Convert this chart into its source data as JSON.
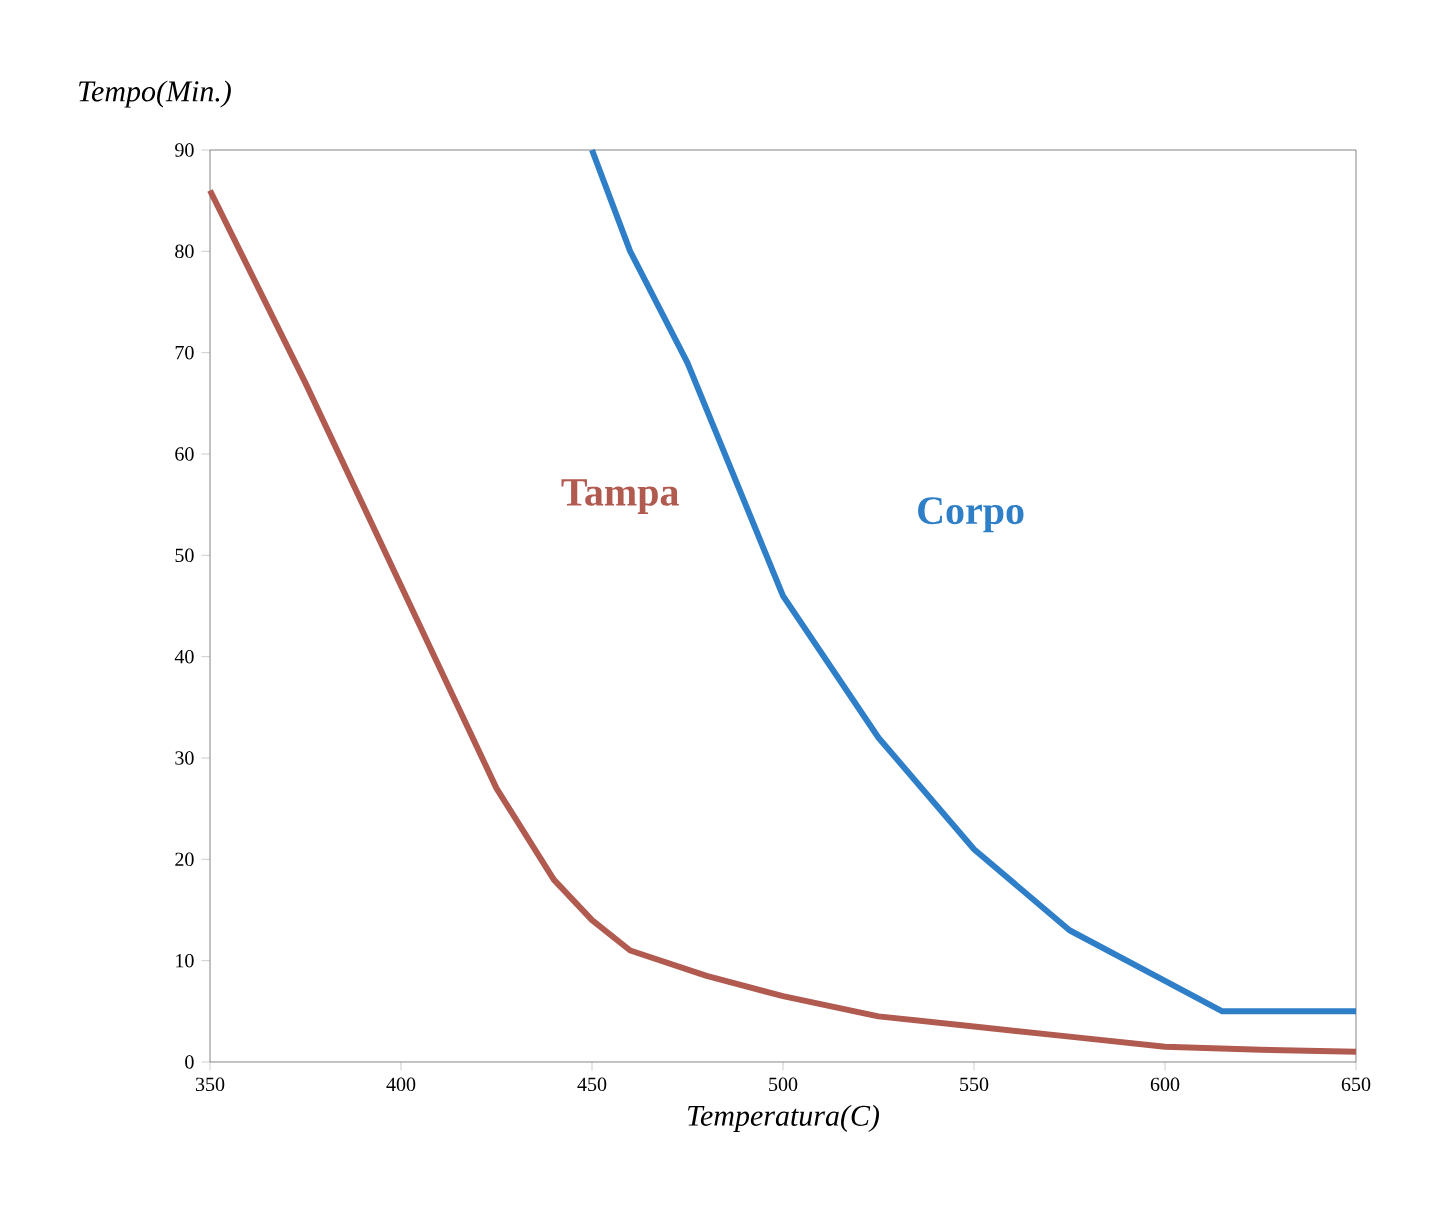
{
  "chart_data": {
    "type": "line",
    "xlabel": "Temperatura(C)",
    "ylabel": "Tempo(Min.)",
    "xlim": [
      350,
      650
    ],
    "xticks": [
      350,
      400,
      450,
      500,
      550,
      600,
      650
    ],
    "ylim": [
      0,
      90
    ],
    "yticks": [
      0,
      10,
      20,
      30,
      40,
      50,
      60,
      70,
      80,
      90
    ],
    "grid": false,
    "marker": "none",
    "line_style": "solid",
    "series": [
      {
        "name": "Tampa",
        "color": "#b05a50",
        "x": [
          350,
          375,
          400,
          425,
          440,
          450,
          460,
          480,
          500,
          525,
          550,
          575,
          600,
          625,
          650
        ],
        "values": [
          86,
          67,
          47,
          27,
          18,
          14,
          11,
          8.5,
          6.5,
          4.5,
          3.5,
          2.5,
          1.5,
          1.2,
          1
        ]
      },
      {
        "name": "Corpo",
        "color": "#2f7fc8",
        "x": [
          450,
          460,
          475,
          500,
          525,
          550,
          575,
          600,
          615,
          650
        ],
        "values": [
          90,
          80,
          69,
          46,
          32,
          21,
          13,
          8,
          5,
          5
        ]
      }
    ]
  }
}
